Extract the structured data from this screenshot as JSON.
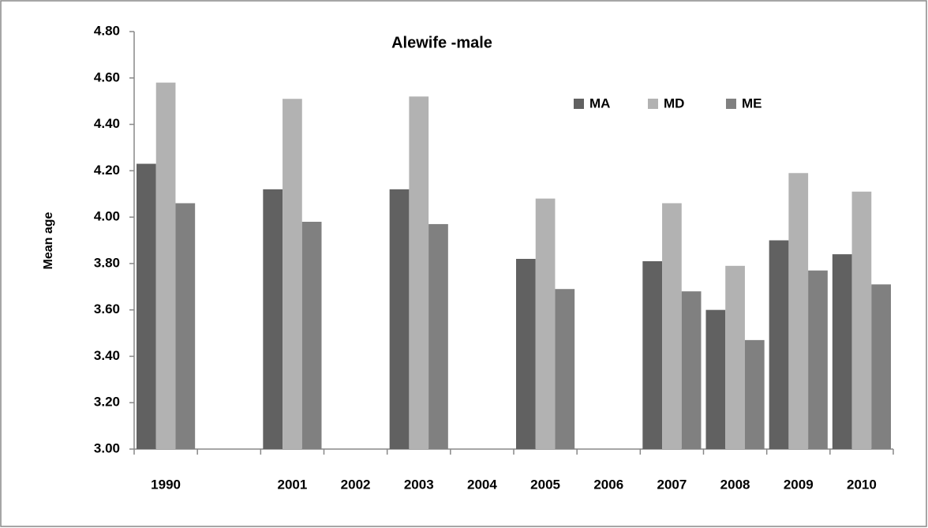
{
  "chart_data": {
    "type": "bar",
    "title": "Alewife -male",
    "y_label": "Mean age",
    "categories": [
      "1990",
      null,
      "2001",
      "2002",
      "2003",
      "2004",
      "2005",
      "2006",
      "2007",
      "2008",
      "2009",
      "2010"
    ],
    "series": [
      {
        "name": "MA",
        "color": "#616161",
        "values": [
          4.23,
          null,
          4.12,
          null,
          4.12,
          null,
          3.82,
          null,
          3.81,
          3.6,
          3.9,
          3.84
        ]
      },
      {
        "name": "MD",
        "color": "#b2b2b2",
        "values": [
          4.58,
          null,
          4.51,
          null,
          4.52,
          null,
          4.08,
          null,
          4.06,
          3.79,
          4.19,
          4.11
        ]
      },
      {
        "name": "ME",
        "color": "#808080",
        "values": [
          4.06,
          null,
          3.98,
          null,
          3.97,
          null,
          3.69,
          null,
          3.68,
          3.47,
          3.77,
          3.71
        ]
      }
    ],
    "ylim": [
      3.0,
      4.8
    ],
    "yticks": [
      {
        "value": 3.0,
        "label": "3.00"
      },
      {
        "value": 3.2,
        "label": "3.20"
      },
      {
        "value": 3.4,
        "label": "3.40"
      },
      {
        "value": 3.6,
        "label": "3.60"
      },
      {
        "value": 3.8,
        "label": "3.80"
      },
      {
        "value": 4.0,
        "label": "4.00"
      },
      {
        "value": 4.2,
        "label": "4.20"
      },
      {
        "value": 4.4,
        "label": "4.40"
      },
      {
        "value": 4.6,
        "label": "4.60"
      },
      {
        "value": 4.8,
        "label": "4.80"
      }
    ],
    "grid": false,
    "legend": "top-right"
  }
}
